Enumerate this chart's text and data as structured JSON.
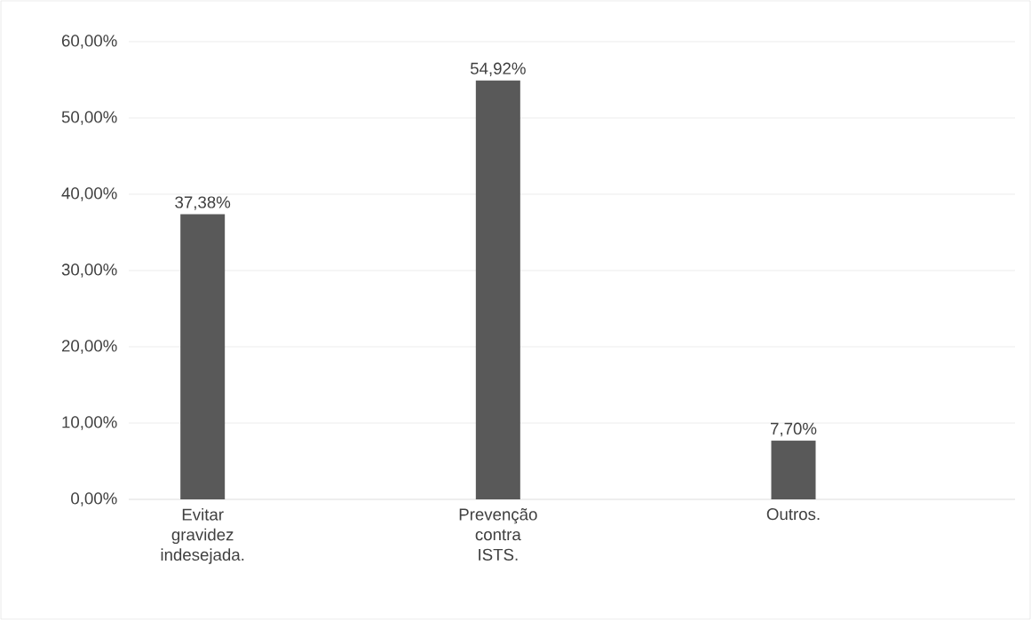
{
  "chart_data": {
    "type": "bar",
    "categories": [
      "Evitar gravidez indesejada.",
      "Prevenção contra ISTS.",
      "Outros."
    ],
    "values": [
      37.38,
      54.92,
      7.7
    ],
    "value_labels": [
      "37,38%",
      "54,92%",
      "7,70%"
    ],
    "color": "#595959",
    "ylim": [
      0,
      60
    ],
    "yticks": [
      {
        "value": 0,
        "label": "0,00%"
      },
      {
        "value": 10,
        "label": "10,00%"
      },
      {
        "value": 20,
        "label": "20,00%"
      },
      {
        "value": 30,
        "label": "30,00%"
      },
      {
        "value": 40,
        "label": "40,00%"
      },
      {
        "value": 50,
        "label": "50,00%"
      },
      {
        "value": 60,
        "label": "60,00%"
      }
    ],
    "grid": "y"
  }
}
